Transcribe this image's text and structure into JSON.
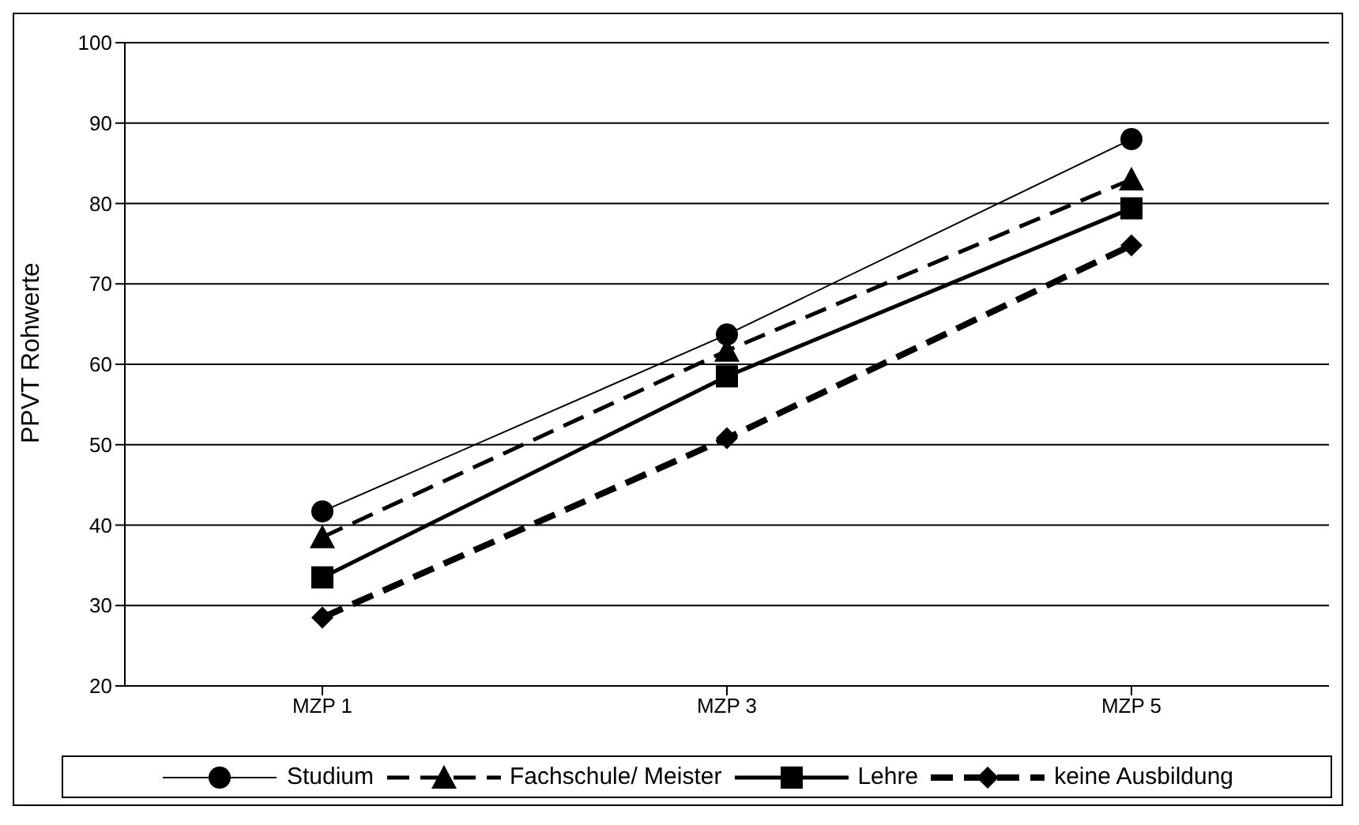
{
  "chart_data": {
    "type": "line",
    "ylabel": "PPVT Rohwerte",
    "categories": [
      "MZP 1",
      "MZP 3",
      "MZP 5"
    ],
    "ylim": [
      20,
      100
    ],
    "yticks": [
      20,
      30,
      40,
      50,
      60,
      70,
      80,
      90,
      100
    ],
    "grid": "y",
    "legend": "bottom",
    "series": [
      {
        "name": "Studium",
        "color": "#000000",
        "values": [
          41.7,
          63.7,
          88
        ],
        "marker": "circle",
        "line_style": "solid"
      },
      {
        "name": "Fachschule/ Meister",
        "color": "#000000",
        "values": [
          38.5,
          61.7,
          83
        ],
        "marker": "triangle",
        "line_style": "dashed"
      },
      {
        "name": "Lehre",
        "color": "#000000",
        "values": [
          33.5,
          58.5,
          79.4
        ],
        "marker": "square",
        "line_style": "solid"
      },
      {
        "name": "keine Ausbildung",
        "color": "#000000",
        "values": [
          28.5,
          50.8,
          74.8
        ],
        "marker": "diamond",
        "line_style": "dashed"
      }
    ]
  }
}
